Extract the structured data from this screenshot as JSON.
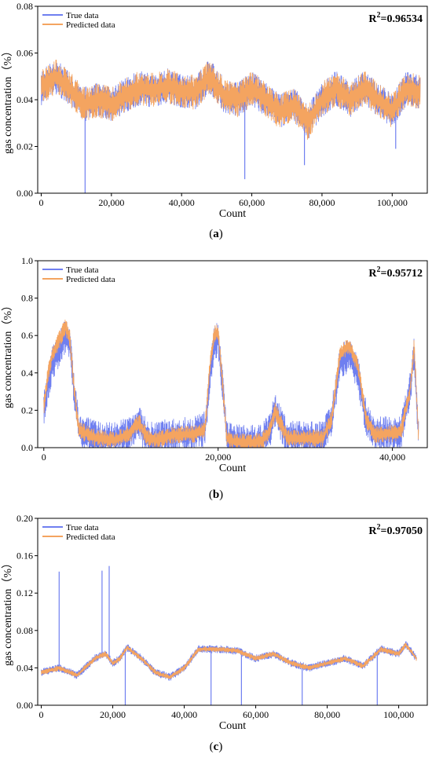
{
  "chart_data": [
    {
      "type": "line",
      "caption": "(a)",
      "xlabel": "Count",
      "ylabel": "gas concentration（%）",
      "r2": {
        "label": "R",
        "sup": "2",
        "value": "=0.96534"
      },
      "xlim": [
        -1000,
        110000
      ],
      "ylim": [
        0,
        0.08
      ],
      "xticks": [
        0,
        20000,
        40000,
        60000,
        80000,
        100000
      ],
      "xtick_labels": [
        "0",
        "20,000",
        "40,000",
        "60,000",
        "80,000",
        "100,000"
      ],
      "yticks": [
        0,
        0.02,
        0.04,
        0.06,
        0.08
      ],
      "ytick_labels": [
        "0.00",
        "0.02",
        "0.04",
        "0.06",
        "0.08"
      ],
      "legend_position": "top-left",
      "n_points": 108000,
      "series": [
        {
          "name": "True data",
          "color": "#6f7ff0",
          "x": [
            0,
            4000,
            8000,
            12000,
            16000,
            20000,
            24000,
            28000,
            32000,
            36000,
            40000,
            44000,
            48000,
            52000,
            56000,
            60000,
            64000,
            68000,
            72000,
            76000,
            80000,
            84000,
            88000,
            92000,
            96000,
            100000,
            104000,
            108000
          ],
          "values": [
            0.045,
            0.05,
            0.045,
            0.038,
            0.04,
            0.038,
            0.042,
            0.045,
            0.044,
            0.046,
            0.044,
            0.043,
            0.05,
            0.042,
            0.04,
            0.045,
            0.04,
            0.035,
            0.038,
            0.03,
            0.04,
            0.045,
            0.04,
            0.045,
            0.04,
            0.035,
            0.045,
            0.043
          ],
          "spikes": [
            {
              "x": 12500,
              "y": 0.0
            },
            {
              "x": 58000,
              "y": 0.006
            },
            {
              "x": 75000,
              "y": 0.012
            },
            {
              "x": 101000,
              "y": 0.019
            }
          ]
        },
        {
          "name": "Predicted data",
          "color": "#f4a460",
          "x": [
            0,
            4000,
            8000,
            12000,
            16000,
            20000,
            24000,
            28000,
            32000,
            36000,
            40000,
            44000,
            48000,
            52000,
            56000,
            60000,
            64000,
            68000,
            72000,
            76000,
            80000,
            84000,
            88000,
            92000,
            96000,
            100000,
            104000,
            108000
          ],
          "values": [
            0.045,
            0.05,
            0.045,
            0.038,
            0.04,
            0.038,
            0.042,
            0.045,
            0.044,
            0.046,
            0.044,
            0.043,
            0.05,
            0.042,
            0.04,
            0.045,
            0.04,
            0.035,
            0.038,
            0.03,
            0.04,
            0.045,
            0.04,
            0.045,
            0.04,
            0.035,
            0.045,
            0.043
          ]
        }
      ]
    },
    {
      "type": "line",
      "caption": "(b)",
      "xlabel": "Count",
      "ylabel": "gas concentration（%）",
      "r2": {
        "label": "R",
        "sup": "2",
        "value": "=0.95712"
      },
      "xlim": [
        -700,
        44000
      ],
      "ylim": [
        0,
        1.0
      ],
      "xticks": [
        0,
        20000,
        40000
      ],
      "xtick_labels": [
        "0",
        "20,000",
        "40,000"
      ],
      "yticks": [
        0,
        0.2,
        0.4,
        0.6,
        0.8,
        1.0
      ],
      "ytick_labels": [
        "0.0",
        "0.2",
        "0.4",
        "0.6",
        "0.8",
        "1.0"
      ],
      "legend_position": "top-left",
      "n_points": 43000,
      "series": [
        {
          "name": "True data",
          "color": "#6f7ff0",
          "x": [
            0,
            500,
            1000,
            1500,
            2000,
            2500,
            3000,
            3500,
            4000,
            5000,
            6000,
            8000,
            10000,
            10500,
            11000,
            11500,
            12000,
            13000,
            14000,
            15000,
            17000,
            18500,
            19000,
            19500,
            20000,
            20500,
            21000,
            22000,
            25000,
            26000,
            26500,
            27000,
            28000,
            32000,
            33000,
            34000,
            35000,
            36000,
            37000,
            38000,
            41000,
            41500,
            42000,
            42500,
            43000
          ],
          "values": [
            0.2,
            0.35,
            0.45,
            0.5,
            0.55,
            0.6,
            0.55,
            0.3,
            0.1,
            0.07,
            0.05,
            0.04,
            0.08,
            0.12,
            0.13,
            0.08,
            0.05,
            0.04,
            0.06,
            0.07,
            0.07,
            0.1,
            0.35,
            0.55,
            0.58,
            0.35,
            0.05,
            0.03,
            0.03,
            0.1,
            0.2,
            0.15,
            0.05,
            0.05,
            0.15,
            0.45,
            0.5,
            0.4,
            0.15,
            0.07,
            0.08,
            0.2,
            0.3,
            0.5,
            0.05
          ]
        },
        {
          "name": "Predicted data",
          "color": "#f4a460",
          "x": [
            0,
            500,
            1000,
            1500,
            2000,
            2500,
            3000,
            3500,
            4000,
            5000,
            6000,
            8000,
            10000,
            10500,
            11000,
            11500,
            12000,
            13000,
            14000,
            15000,
            17000,
            18500,
            19000,
            19500,
            20000,
            20500,
            21000,
            22000,
            25000,
            26000,
            26500,
            27000,
            28000,
            32000,
            33000,
            34000,
            35000,
            36000,
            37000,
            38000,
            41000,
            41500,
            42000,
            42500,
            43000
          ],
          "values": [
            0.22,
            0.4,
            0.5,
            0.55,
            0.6,
            0.65,
            0.58,
            0.3,
            0.1,
            0.07,
            0.05,
            0.04,
            0.08,
            0.12,
            0.13,
            0.08,
            0.05,
            0.04,
            0.06,
            0.07,
            0.07,
            0.1,
            0.4,
            0.6,
            0.62,
            0.35,
            0.05,
            0.03,
            0.03,
            0.1,
            0.2,
            0.15,
            0.05,
            0.05,
            0.15,
            0.5,
            0.55,
            0.45,
            0.15,
            0.07,
            0.08,
            0.2,
            0.3,
            0.55,
            0.05
          ]
        }
      ]
    },
    {
      "type": "line",
      "caption": "(c)",
      "xlabel": "Count",
      "ylabel": "gas concentration（%）",
      "r2": {
        "label": "R",
        "sup": "2",
        "value": "=0.97050"
      },
      "xlim": [
        -1000,
        108000
      ],
      "ylim": [
        0,
        0.2
      ],
      "xticks": [
        0,
        20000,
        40000,
        60000,
        80000,
        100000
      ],
      "xtick_labels": [
        "0",
        "20,000",
        "40,000",
        "60,000",
        "80,000",
        "100,000"
      ],
      "yticks": [
        0,
        0.04,
        0.08,
        0.12,
        0.16,
        0.2
      ],
      "ytick_labels": [
        "0.00",
        "0.04",
        "0.08",
        "0.12",
        "0.16",
        "0.20"
      ],
      "legend_position": "top-left",
      "n_points": 105000,
      "series": [
        {
          "name": "True data",
          "color": "#6f7ff0",
          "x": [
            0,
            5000,
            10000,
            15000,
            18000,
            20000,
            22000,
            24000,
            28000,
            32000,
            36000,
            40000,
            44000,
            50000,
            55000,
            60000,
            65000,
            70000,
            75000,
            80000,
            85000,
            90000,
            95000,
            100000,
            102000,
            105000
          ],
          "values": [
            0.035,
            0.04,
            0.032,
            0.05,
            0.055,
            0.045,
            0.05,
            0.062,
            0.05,
            0.035,
            0.03,
            0.04,
            0.06,
            0.06,
            0.058,
            0.05,
            0.055,
            0.045,
            0.04,
            0.045,
            0.05,
            0.042,
            0.06,
            0.055,
            0.065,
            0.05
          ],
          "spikes": [
            {
              "x": 5000,
              "y": 0.143
            },
            {
              "x": 17000,
              "y": 0.144
            },
            {
              "x": 19000,
              "y": 0.149
            },
            {
              "x": 23500,
              "y": 0.0
            },
            {
              "x": 47500,
              "y": 0.0
            },
            {
              "x": 56000,
              "y": 0.0
            },
            {
              "x": 73000,
              "y": 0.0
            },
            {
              "x": 94000,
              "y": 0.0
            }
          ]
        },
        {
          "name": "Predicted data",
          "color": "#f4a460",
          "x": [
            0,
            5000,
            10000,
            15000,
            18000,
            20000,
            22000,
            24000,
            28000,
            32000,
            36000,
            40000,
            44000,
            50000,
            55000,
            60000,
            65000,
            70000,
            75000,
            80000,
            85000,
            90000,
            95000,
            100000,
            102000,
            105000
          ],
          "values": [
            0.035,
            0.04,
            0.032,
            0.05,
            0.055,
            0.045,
            0.05,
            0.062,
            0.05,
            0.035,
            0.03,
            0.04,
            0.06,
            0.06,
            0.058,
            0.05,
            0.055,
            0.045,
            0.04,
            0.045,
            0.05,
            0.042,
            0.06,
            0.055,
            0.065,
            0.05
          ]
        }
      ]
    }
  ]
}
